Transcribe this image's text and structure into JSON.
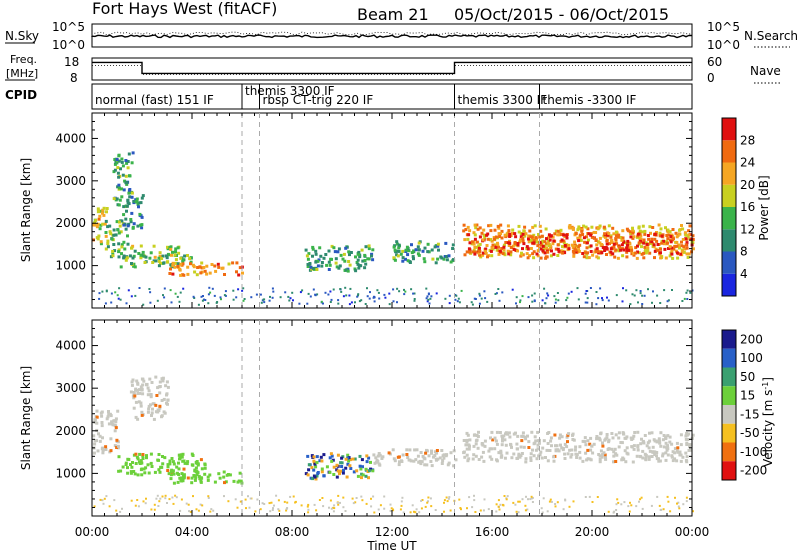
{
  "header": {
    "site": "Fort Hays West (fitACF)",
    "beam": "Beam 21",
    "dates": "05/Oct/2015 - 06/Oct/2015"
  },
  "strips": {
    "nsky_label": "N.Sky",
    "nsky_ticks": [
      "10^5",
      "10^0"
    ],
    "nsearch_label": "N.Search",
    "nsearch_ticks": [
      "10^5",
      "10^0"
    ],
    "freq_label_1": "Freq.",
    "freq_label_2": "[MHz]",
    "freq_ticks": [
      "18",
      "8"
    ],
    "nave_label": "Nave",
    "nave_ticks": [
      "60",
      "0"
    ],
    "cpid_label": "CPID",
    "cpid_segments": [
      {
        "start": 0.0,
        "end": 6.0,
        "label": "normal (fast) 151 IF"
      },
      {
        "start": 6.0,
        "end": 6.7,
        "label": "themis 3300 IF"
      },
      {
        "start": 6.7,
        "end": 14.5,
        "label": "rbsp CT-trig 220 IF"
      },
      {
        "start": 14.5,
        "end": 17.9,
        "label": "themis 3300 IF"
      },
      {
        "start": 17.9,
        "end": 24.0,
        "label": "themis -3300 IF"
      }
    ],
    "freq_high_mhz": 16,
    "freq_low_mhz": 11
  },
  "chart_data": [
    {
      "type": "heatmap",
      "ylabel": "Slant Range [km]",
      "ylim": [
        0,
        4600
      ],
      "yticks": [
        1000,
        2000,
        3000,
        4000
      ],
      "colorbar_label": "Power [dB]",
      "colorbar_ticks": [
        4,
        8,
        12,
        16,
        20,
        24,
        28
      ],
      "colorbar_range": [
        0,
        32
      ],
      "colors": [
        "#1a26e0",
        "#2a58c0",
        "#2e8a6e",
        "#3ab34a",
        "#c8d020",
        "#f5a623",
        "#f06a10",
        "#e01010"
      ],
      "echo_regions": [
        {
          "t0": 0.0,
          "t1": 0.6,
          "r0": 1500,
          "r1": 2400,
          "level": 20
        },
        {
          "t0": 0.5,
          "t1": 1.4,
          "r0": 1200,
          "r1": 2100,
          "level": 14
        },
        {
          "t0": 0.8,
          "t1": 1.6,
          "r0": 2400,
          "r1": 3700,
          "level": 12
        },
        {
          "t0": 1.2,
          "t1": 2.0,
          "r0": 1900,
          "r1": 2700,
          "level": 10
        },
        {
          "t0": 1.5,
          "t1": 3.5,
          "r0": 1200,
          "r1": 1500,
          "level": 16
        },
        {
          "t0": 1.0,
          "t1": 4.0,
          "r0": 1000,
          "r1": 1300,
          "level": 14
        },
        {
          "t0": 3.0,
          "t1": 6.0,
          "r0": 800,
          "r1": 1100,
          "level": 24
        },
        {
          "t0": 8.5,
          "t1": 11.2,
          "r0": 900,
          "r1": 1500,
          "level": 12
        },
        {
          "t0": 12.0,
          "t1": 14.5,
          "r0": 1100,
          "r1": 1600,
          "level": 12
        },
        {
          "t0": 14.8,
          "t1": 24.0,
          "r0": 1200,
          "r1": 2000,
          "level": 22
        },
        {
          "t0": 15.0,
          "t1": 24.0,
          "r0": 1300,
          "r1": 1800,
          "level": 28
        }
      ]
    },
    {
      "type": "heatmap",
      "ylabel": "Slant Range [km]",
      "xlabel": "Time UT",
      "ylim": [
        0,
        4600
      ],
      "yticks": [
        1000,
        2000,
        3000,
        4000
      ],
      "colorbar_label_1": "Velocity [m s",
      "colorbar_label_sup": "-1",
      "colorbar_label_2": "]",
      "colorbar_ticks": [
        "200",
        "100",
        "50",
        "15",
        "-15",
        "-50",
        "-100",
        "-200"
      ],
      "colors": [
        "#1a1a8c",
        "#2860c8",
        "#3aa070",
        "#6cd03a",
        "#c8c8c0",
        "#f5c020",
        "#f07010",
        "#e01010"
      ],
      "echo_regions": [
        {
          "t0": 0.0,
          "t1": 1.0,
          "r0": 1500,
          "r1": 2500,
          "level": "-15..15"
        },
        {
          "t0": 1.5,
          "t1": 3.0,
          "r0": 2300,
          "r1": 3300,
          "level": "-15..15"
        },
        {
          "t0": 1.0,
          "t1": 4.5,
          "r0": 1000,
          "r1": 1500,
          "level": "15..50"
        },
        {
          "t0": 3.0,
          "t1": 6.0,
          "r0": 800,
          "r1": 1100,
          "level": "15..50"
        },
        {
          "t0": 8.5,
          "t1": 11.2,
          "r0": 900,
          "r1": 1500,
          "level": "50..100"
        },
        {
          "t0": 11.2,
          "t1": 14.5,
          "r0": 1200,
          "r1": 1600,
          "level": "-15..15"
        },
        {
          "t0": 14.8,
          "t1": 24.0,
          "r0": 1300,
          "r1": 2000,
          "level": "-15..15"
        }
      ]
    }
  ],
  "x_axis": {
    "tick_labels": [
      "00:00",
      "04:00",
      "08:00",
      "12:00",
      "16:00",
      "20:00",
      "00:00"
    ],
    "tick_hours": [
      0,
      4,
      8,
      12,
      16,
      20,
      24
    ],
    "xlim": [
      0,
      24
    ],
    "xlabel": "Time UT"
  }
}
